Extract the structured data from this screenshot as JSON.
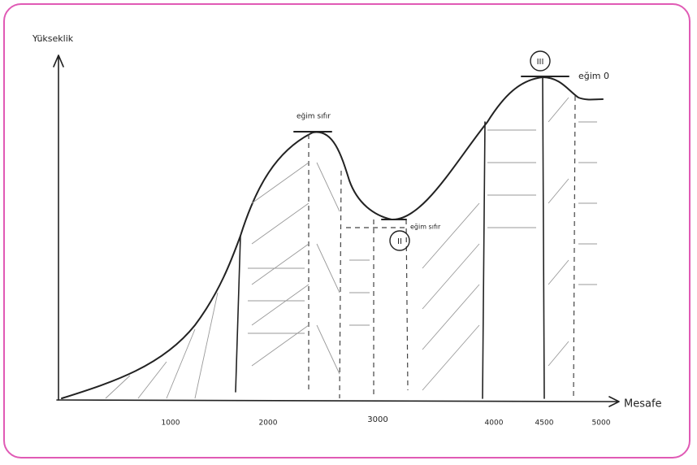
{
  "diagram": {
    "y_axis_label": "Yükseklik",
    "x_axis_label": "Mesafe",
    "x_tick_labels": [
      "1000",
      "2000",
      "3000",
      "4000",
      "4500",
      "5000"
    ],
    "annotations": [
      "eğim sıfır",
      "eğim sıfır",
      "eğim 0"
    ],
    "markers": [
      "II",
      "III"
    ]
  }
}
